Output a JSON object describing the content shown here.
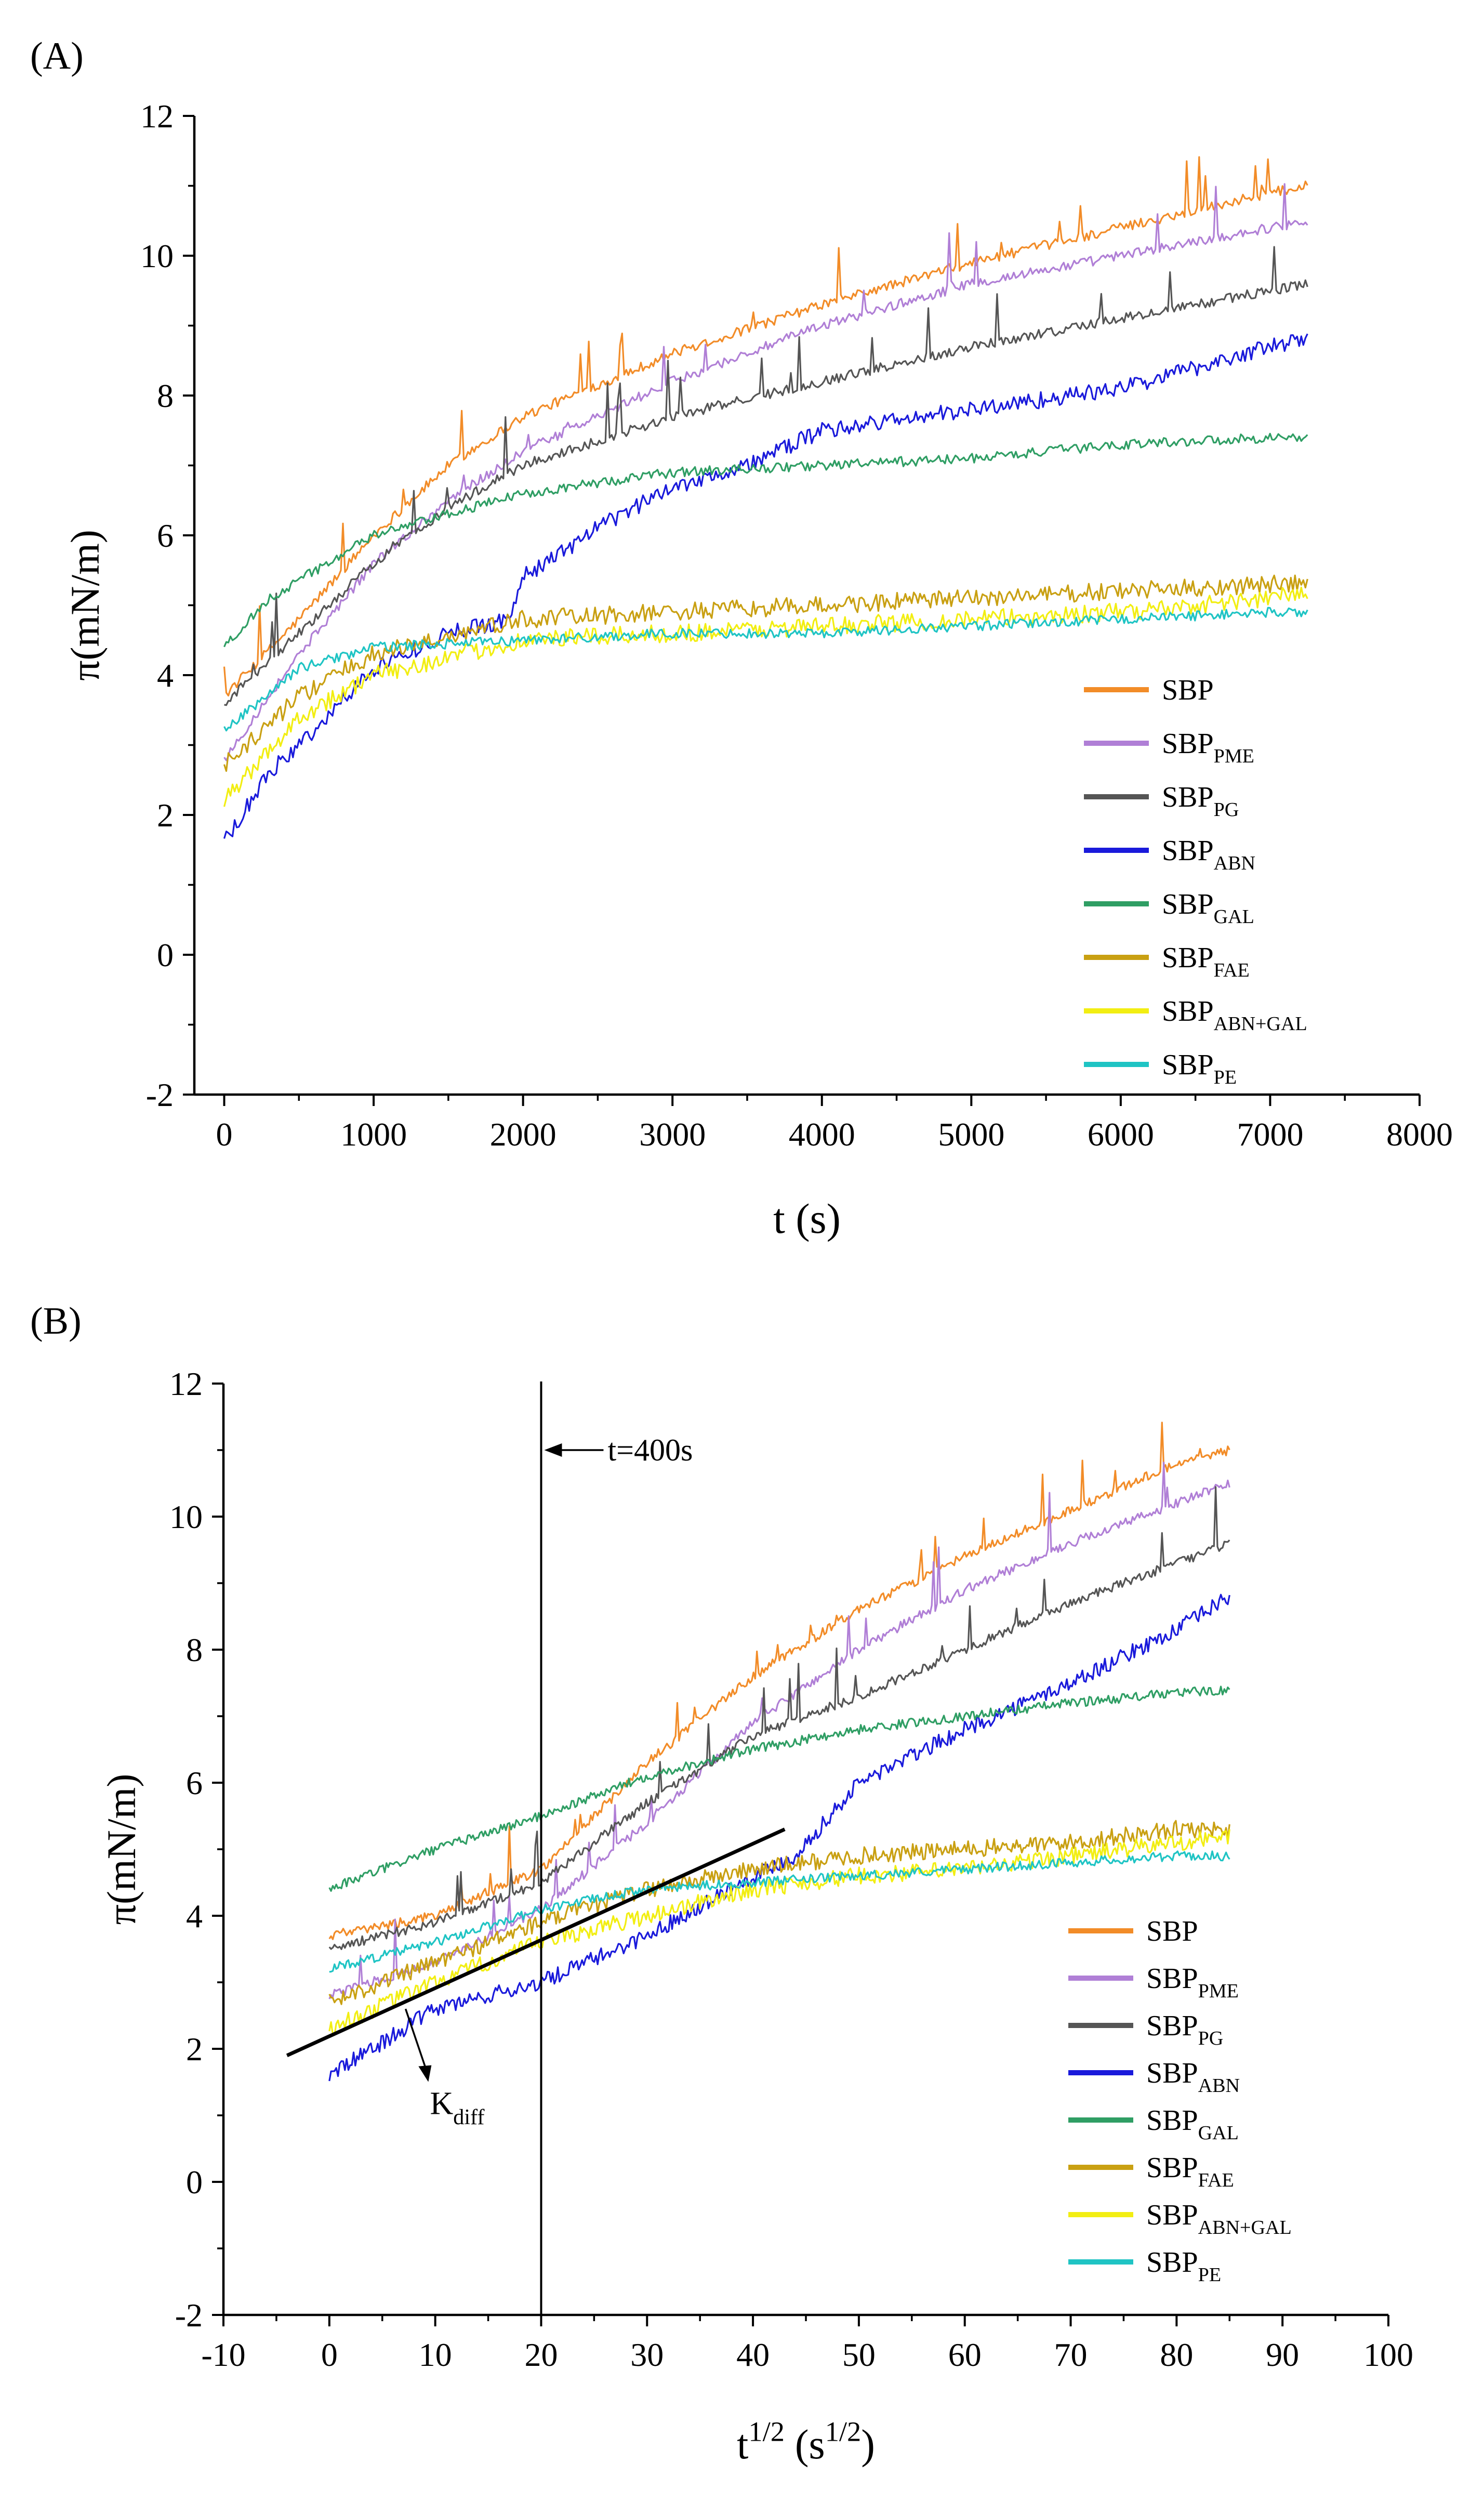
{
  "chart_data": [
    {
      "panel_label": "(A)",
      "type": "line",
      "xlabel": "t (s)",
      "ylabel": "π(mN/m)",
      "xlim": [
        -200,
        8000
      ],
      "ylim": [
        -2,
        12
      ],
      "xticks": [
        0,
        1000,
        2000,
        3000,
        4000,
        5000,
        6000,
        7000,
        8000
      ],
      "yticks": [
        -2,
        0,
        2,
        4,
        6,
        8,
        10,
        12
      ],
      "legend_position": "lower-right",
      "series": [
        {
          "name": "SBP",
          "sub": "",
          "color": "#f28c28",
          "x": [
            0,
            500,
            1000,
            1500,
            2000,
            3000,
            4000,
            5000,
            6000,
            7000,
            7250
          ],
          "y": [
            3.7,
            4.8,
            6.0,
            7.0,
            7.7,
            8.6,
            9.3,
            9.9,
            10.4,
            10.9,
            11.0
          ]
        },
        {
          "name": "SBP",
          "sub": "PME",
          "color": "#b07fd6",
          "x": [
            0,
            500,
            1000,
            1500,
            2000,
            3000,
            4000,
            5000,
            6000,
            7000,
            7250
          ],
          "y": [
            2.8,
            4.3,
            5.6,
            6.5,
            7.2,
            8.2,
            9.0,
            9.6,
            10.0,
            10.4,
            10.5
          ]
        },
        {
          "name": "SBP",
          "sub": "PG",
          "color": "#555555",
          "x": [
            0,
            500,
            1000,
            1500,
            2000,
            3000,
            4000,
            5000,
            6000,
            7000,
            7250
          ],
          "y": [
            3.6,
            4.6,
            5.6,
            6.4,
            7.0,
            7.7,
            8.2,
            8.7,
            9.1,
            9.5,
            9.6
          ]
        },
        {
          "name": "SBP",
          "sub": "ABN",
          "color": "#1a1adb",
          "x": [
            0,
            300,
            600,
            1000,
            1500,
            1900,
            2000,
            2500,
            3000,
            3500,
            4000,
            5000,
            6000,
            7000,
            7250
          ],
          "y": [
            1.6,
            2.6,
            3.2,
            4.1,
            4.6,
            4.8,
            5.4,
            6.1,
            6.7,
            7.0,
            7.5,
            7.8,
            8.1,
            8.7,
            8.8
          ]
        },
        {
          "name": "SBP",
          "sub": "GAL",
          "color": "#2f9e64",
          "x": [
            0,
            300,
            1000,
            1500,
            2000,
            3000,
            4000,
            5000,
            6000,
            7000,
            7250
          ],
          "y": [
            4.4,
            5.1,
            6.0,
            6.3,
            6.6,
            6.9,
            7.0,
            7.1,
            7.3,
            7.4,
            7.4
          ]
        },
        {
          "name": "SBP",
          "sub": "FAE",
          "color": "#c9a012",
          "x": [
            0,
            500,
            1000,
            2000,
            3000,
            4000,
            5000,
            6000,
            7000,
            7250
          ],
          "y": [
            2.7,
            3.7,
            4.3,
            4.8,
            4.9,
            5.0,
            5.1,
            5.2,
            5.3,
            5.3
          ]
        },
        {
          "name": "SBP",
          "sub": "ABN+GAL",
          "color": "#f2ee12",
          "x": [
            0,
            500,
            1000,
            2000,
            3000,
            4000,
            5000,
            6000,
            7000,
            7250
          ],
          "y": [
            2.2,
            3.4,
            4.0,
            4.5,
            4.6,
            4.7,
            4.8,
            4.9,
            5.1,
            5.2
          ]
        },
        {
          "name": "SBP",
          "sub": "PE",
          "color": "#1fc4c4",
          "x": [
            0,
            500,
            1000,
            2000,
            3000,
            4000,
            5000,
            6000,
            7000,
            7250
          ],
          "y": [
            3.2,
            4.1,
            4.4,
            4.5,
            4.6,
            4.6,
            4.7,
            4.8,
            4.9,
            4.9
          ]
        }
      ]
    },
    {
      "panel_label": "(B)",
      "type": "line",
      "xlabel_main": "t",
      "xlabel_sup": "1/2",
      "xlabel_unit_main": " (s",
      "xlabel_unit_sup": "1/2",
      "xlabel_close": ")",
      "ylabel": "π(mN/m)",
      "xlim": [
        -10,
        100
      ],
      "ylim": [
        -2,
        12
      ],
      "xticks": [
        -10,
        0,
        10,
        20,
        30,
        40,
        50,
        60,
        70,
        80,
        90,
        100
      ],
      "yticks": [
        -2,
        0,
        2,
        4,
        6,
        8,
        10,
        12
      ],
      "legend_position": "lower-right",
      "annotations": {
        "vline_x": 20,
        "vline_label": "t=400s",
        "fit_line": {
          "x": [
            -4,
            43
          ],
          "y": [
            1.9,
            5.3
          ]
        },
        "fit_label_main": "K",
        "fit_label_sub": "diff"
      },
      "series": [
        {
          "name": "SBP",
          "sub": "",
          "color": "#f28c28",
          "x": [
            0,
            10,
            20,
            30,
            40,
            50,
            60,
            70,
            80,
            85
          ],
          "y": [
            3.7,
            4.0,
            4.7,
            6.3,
            7.6,
            8.6,
            9.4,
            10.1,
            10.8,
            11.0
          ]
        },
        {
          "name": "SBP",
          "sub": "PME",
          "color": "#b07fd6",
          "x": [
            0,
            10,
            20,
            30,
            40,
            50,
            60,
            70,
            80,
            85
          ],
          "y": [
            2.8,
            3.3,
            4.1,
            5.4,
            6.9,
            8.0,
            8.9,
            9.6,
            10.2,
            10.5
          ]
        },
        {
          "name": "SBP",
          "sub": "PG",
          "color": "#555555",
          "x": [
            0,
            10,
            20,
            30,
            40,
            50,
            60,
            70,
            80,
            85
          ],
          "y": [
            3.5,
            3.9,
            4.5,
            5.7,
            6.7,
            7.3,
            8.0,
            8.7,
            9.3,
            9.6
          ]
        },
        {
          "name": "SBP",
          "sub": "ABN",
          "color": "#1a1adb",
          "x": [
            0,
            10,
            20,
            30,
            40,
            44,
            50,
            60,
            70,
            80,
            85
          ],
          "y": [
            1.6,
            2.6,
            3.0,
            3.7,
            4.6,
            4.9,
            6.0,
            6.8,
            7.5,
            8.3,
            8.8
          ]
        },
        {
          "name": "SBP",
          "sub": "GAL",
          "color": "#2f9e64",
          "x": [
            0,
            10,
            20,
            30,
            40,
            50,
            60,
            70,
            80,
            85
          ],
          "y": [
            4.4,
            5.0,
            5.5,
            6.1,
            6.5,
            6.8,
            7.0,
            7.2,
            7.35,
            7.4
          ]
        },
        {
          "name": "SBP",
          "sub": "FAE",
          "color": "#c9a012",
          "x": [
            0,
            10,
            20,
            30,
            40,
            50,
            60,
            70,
            80,
            85
          ],
          "y": [
            2.7,
            3.3,
            3.9,
            4.4,
            4.7,
            4.9,
            5.0,
            5.1,
            5.3,
            5.3
          ]
        },
        {
          "name": "SBP",
          "sub": "ABN+GAL",
          "color": "#f2ee12",
          "x": [
            0,
            10,
            20,
            30,
            40,
            50,
            60,
            70,
            80,
            85
          ],
          "y": [
            2.3,
            3.0,
            3.6,
            4.0,
            4.4,
            4.6,
            4.7,
            4.9,
            5.1,
            5.2
          ]
        },
        {
          "name": "SBP",
          "sub": "PE",
          "color": "#1fc4c4",
          "x": [
            0,
            10,
            20,
            30,
            40,
            50,
            60,
            70,
            80,
            85
          ],
          "y": [
            3.2,
            3.6,
            4.1,
            4.4,
            4.5,
            4.6,
            4.7,
            4.8,
            4.9,
            4.9
          ]
        }
      ]
    }
  ]
}
